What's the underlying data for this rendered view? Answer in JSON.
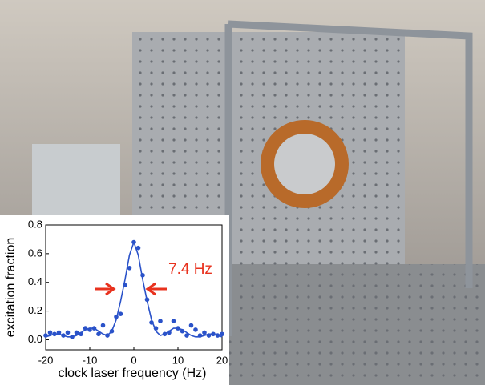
{
  "chart_data": {
    "type": "scatter",
    "xlabel": "clock laser frequency (Hz)",
    "ylabel": "excitation fraction",
    "annotation": "7.4 Hz",
    "annotation_color": "#e8321e",
    "x": [
      -20,
      -19,
      -18,
      -17,
      -16,
      -15,
      -14,
      -13,
      -12,
      -11,
      -10,
      -9,
      -8,
      -7,
      -6,
      -5,
      -4,
      -3,
      -2,
      -1,
      0,
      1,
      2,
      3,
      4,
      5,
      6,
      7,
      8,
      9,
      10,
      11,
      12,
      13,
      14,
      15,
      16,
      17,
      18,
      19,
      20
    ],
    "series": [
      {
        "mode": "markers",
        "color": "#2a52c9",
        "values": [
          0.03,
          0.05,
          0.04,
          0.05,
          0.03,
          0.05,
          0.02,
          0.05,
          0.04,
          0.08,
          0.07,
          0.08,
          0.04,
          0.1,
          0.03,
          0.06,
          0.16,
          0.18,
          0.38,
          0.5,
          0.68,
          0.64,
          0.45,
          0.28,
          0.12,
          0.08,
          0.13,
          0.04,
          0.05,
          0.13,
          0.08,
          0.06,
          0.03,
          0.1,
          0.07,
          0.03,
          0.05,
          0.03,
          0.04,
          0.03,
          0.04
        ]
      },
      {
        "mode": "line",
        "color": "#2a52c9",
        "values": [
          0.02,
          0.03,
          0.04,
          0.04,
          0.03,
          0.02,
          0.02,
          0.03,
          0.05,
          0.07,
          0.08,
          0.08,
          0.06,
          0.04,
          0.03,
          0.06,
          0.14,
          0.27,
          0.42,
          0.59,
          0.68,
          0.59,
          0.42,
          0.27,
          0.14,
          0.06,
          0.03,
          0.04,
          0.06,
          0.08,
          0.08,
          0.07,
          0.05,
          0.03,
          0.02,
          0.02,
          0.03,
          0.04,
          0.04,
          0.03,
          0.02
        ]
      }
    ],
    "xlim": [
      -20,
      20
    ],
    "xticks": [
      -20,
      -10,
      0,
      10,
      20
    ],
    "ylim": [
      -0.07,
      0.8
    ],
    "yticks": [
      {
        "value": 0,
        "label": "0.0"
      },
      0.2,
      0.4,
      0.6,
      0.8
    ]
  }
}
